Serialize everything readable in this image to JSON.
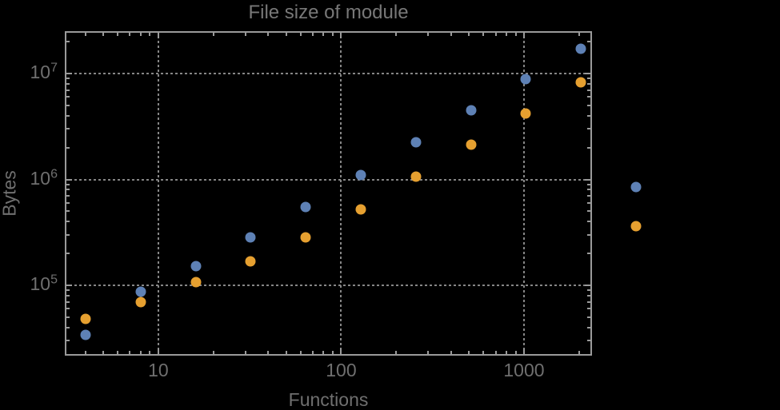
{
  "chart_data": {
    "type": "scatter",
    "title": "File size of module",
    "xlabel": "Functions",
    "ylabel": "Bytes",
    "x_scale": "log",
    "y_scale": "log",
    "xlim": [
      3.08,
      2355
    ],
    "ylim": [
      21700,
      25100000
    ],
    "grid": {
      "style": "dotted",
      "x": [
        10,
        100,
        1000
      ],
      "y": [
        100000,
        1000000,
        10000000
      ]
    },
    "x_ticks": [
      {
        "value": 10,
        "label": "10"
      },
      {
        "value": 100,
        "label": "100"
      },
      {
        "value": 1000,
        "label": "1000"
      }
    ],
    "y_ticks": [
      {
        "value": 100000,
        "mantissa": "10",
        "exponent": "5"
      },
      {
        "value": 1000000,
        "mantissa": "10",
        "exponent": "6"
      },
      {
        "value": 10000000,
        "mantissa": "10",
        "exponent": "7"
      }
    ],
    "x": [
      4,
      8,
      16,
      32,
      64,
      128,
      256,
      512,
      1024,
      2048,
      4096
    ],
    "series": [
      {
        "name": "blue",
        "color": "#5E81B5",
        "values": [
          34000,
          87000,
          153000,
          285000,
          545000,
          1110000,
          2230000,
          4480000,
          8900000,
          17200000,
          855000
        ]
      },
      {
        "name": "orange",
        "color": "#E6A030",
        "values": [
          48000,
          70000,
          108000,
          169000,
          285000,
          525000,
          1070000,
          2120000,
          4180000,
          8260000,
          364000
        ]
      }
    ],
    "legend": null,
    "notes": "two points per series at x=4096 are rendered outside the right edge of the plot frame"
  },
  "colors": {
    "background": "#000000",
    "frame": "#9a9a9a",
    "gridline": "#868686",
    "tick": "#9a9a9a",
    "title_text": "#787878",
    "label_text": "#6f6f6f"
  }
}
